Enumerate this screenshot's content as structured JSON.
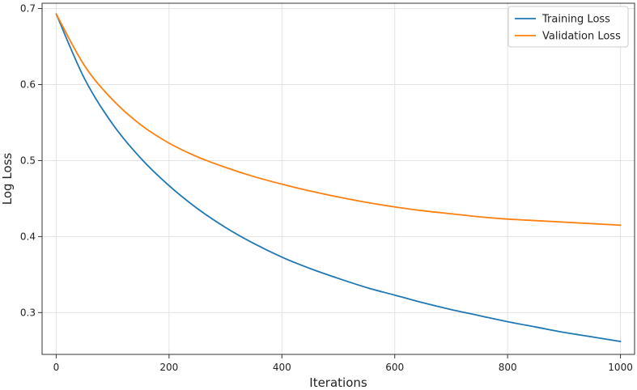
{
  "chart_data": {
    "type": "line",
    "xlabel": "Iterations",
    "ylabel": "Log Loss",
    "xlim": [
      -25,
      1025
    ],
    "ylim": [
      0.245,
      0.707
    ],
    "xticks": [
      0,
      200,
      400,
      600,
      800,
      1000
    ],
    "yticks": [
      0.3,
      0.4,
      0.5,
      0.6,
      0.7
    ],
    "xtick_labels": [
      "0",
      "200",
      "400",
      "600",
      "800",
      "1000"
    ],
    "ytick_labels": [
      "0.3",
      "0.4",
      "0.5",
      "0.6",
      "0.7"
    ],
    "grid": true,
    "legend_position": "top-right",
    "x": [
      0,
      50,
      100,
      150,
      200,
      250,
      300,
      350,
      400,
      450,
      500,
      550,
      600,
      650,
      700,
      750,
      800,
      850,
      900,
      950,
      1000
    ],
    "series": [
      {
        "name": "Training Loss",
        "color": "#1f77b4",
        "values": [
          0.693,
          0.608,
          0.548,
          0.503,
          0.467,
          0.437,
          0.412,
          0.391,
          0.373,
          0.358,
          0.345,
          0.333,
          0.323,
          0.313,
          0.304,
          0.296,
          0.288,
          0.281,
          0.274,
          0.268,
          0.262
        ]
      },
      {
        "name": "Validation Loss",
        "color": "#ff7f0e",
        "values": [
          0.693,
          0.625,
          0.58,
          0.547,
          0.523,
          0.505,
          0.491,
          0.479,
          0.469,
          0.46,
          0.452,
          0.445,
          0.439,
          0.434,
          0.43,
          0.426,
          0.423,
          0.421,
          0.419,
          0.417,
          0.415
        ]
      }
    ]
  }
}
